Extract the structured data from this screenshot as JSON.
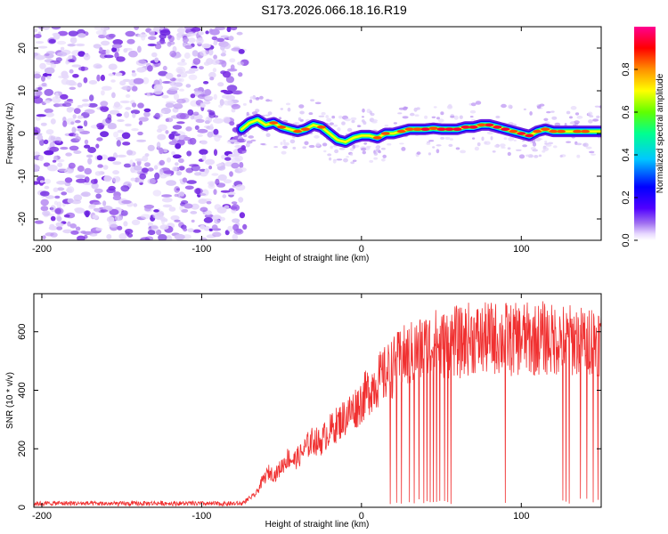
{
  "title": "S173.2026.066.18.16.R19",
  "chart_data": [
    {
      "type": "heatmap",
      "xlabel": "Height of straight line (km)",
      "ylabel": "Frequency (Hz)",
      "xlim": [
        -205,
        150
      ],
      "ylim": [
        -25,
        25
      ],
      "xticks": [
        -200,
        -100,
        0,
        100
      ],
      "yticks": [
        -20,
        -10,
        0,
        10,
        20
      ],
      "noise_region_x": [
        -205,
        -73
      ],
      "ridge": {
        "x": [
          -75,
          -70,
          -65,
          -60,
          -55,
          -50,
          -45,
          -40,
          -35,
          -30,
          -25,
          -20,
          -15,
          -10,
          -5,
          0,
          5,
          10,
          15,
          20,
          25,
          30,
          35,
          40,
          45,
          50,
          55,
          60,
          65,
          70,
          75,
          80,
          85,
          90,
          95,
          100,
          105,
          110,
          115,
          120,
          125,
          130,
          135,
          140,
          145,
          150
        ],
        "freq": [
          1.0,
          2.5,
          3.2,
          2.0,
          2.5,
          1.5,
          1.0,
          0.5,
          1.0,
          2.0,
          1.5,
          0.0,
          -1.5,
          -2.0,
          -1.0,
          -0.5,
          -0.5,
          -1.0,
          0.0,
          0.0,
          0.5,
          1.0,
          1.0,
          1.0,
          1.2,
          1.0,
          1.0,
          1.0,
          1.5,
          1.5,
          2.0,
          2.0,
          1.5,
          1.0,
          0.5,
          0.0,
          -0.5,
          0.5,
          1.0,
          0.5,
          0.5,
          0.5,
          0.5,
          0.5,
          0.5,
          0.5
        ],
        "amplitude": [
          0.65,
          0.8,
          0.75,
          0.8,
          0.9,
          0.85,
          0.8,
          0.9,
          0.85,
          0.8,
          0.9,
          0.8,
          0.7,
          0.75,
          0.8,
          0.75,
          0.8,
          0.85,
          0.9,
          0.8,
          0.85,
          0.9,
          0.9,
          0.95,
          0.9,
          0.95,
          1.0,
          0.95,
          0.95,
          1.0,
          0.9,
          0.95,
          1.0,
          0.95,
          0.9,
          1.0,
          0.95,
          0.9,
          0.85,
          0.9,
          0.85,
          0.8,
          0.9,
          0.85,
          0.8,
          0.8
        ]
      },
      "colorbar": {
        "label": "Normalized spectral amplitude",
        "range": [
          0.0,
          1.0
        ],
        "ticks": [
          "0.0",
          "0.2",
          "0.4",
          "0.6",
          "0.8"
        ],
        "tick_values": [
          0.0,
          0.2,
          0.4,
          0.6,
          0.8
        ]
      },
      "colors": {
        "noise": "#7b2fe0",
        "scale": [
          "#ffffff",
          "#e8d8ff",
          "#a070f0",
          "#4000ff",
          "#0000ff",
          "#00c8ff",
          "#00ff80",
          "#80ff00",
          "#ffff00",
          "#ff8000",
          "#ff0000",
          "#ff0080"
        ]
      }
    },
    {
      "type": "line",
      "xlabel": "Height of straight line (km)",
      "ylabel": "SNR (10 * v/v)",
      "xlim": [
        -205,
        150
      ],
      "ylim": [
        0,
        730
      ],
      "xticks": [
        -200,
        -100,
        0,
        100
      ],
      "yticks": [
        0,
        200,
        400,
        600
      ],
      "series": [
        {
          "color": "#f03030",
          "x": [
            -205,
            -190,
            -170,
            -150,
            -130,
            -110,
            -90,
            -75,
            -66,
            -62,
            -58,
            -54,
            -50,
            -46,
            -42,
            -38,
            -34,
            -30,
            -26,
            -22,
            -18,
            -14,
            -10,
            -6,
            -2,
            2,
            6,
            10,
            14,
            18,
            22,
            26,
            30,
            34,
            38,
            42,
            46,
            50,
            54,
            58,
            62,
            66,
            70,
            74,
            78,
            82,
            86,
            90,
            94,
            98,
            102,
            106,
            110,
            114,
            118,
            122,
            126,
            130,
            134,
            138,
            142,
            146,
            150
          ],
          "y": [
            12,
            14,
            13,
            12,
            14,
            13,
            12,
            13,
            45,
            90,
            120,
            110,
            140,
            170,
            160,
            180,
            210,
            230,
            220,
            250,
            270,
            290,
            310,
            330,
            350,
            380,
            410,
            430,
            450,
            470,
            490,
            510,
            520,
            530,
            540,
            550,
            560,
            550,
            560,
            570,
            560,
            575,
            580,
            570,
            575,
            580,
            575,
            580,
            570,
            575,
            580,
            570,
            575,
            580,
            570,
            575,
            580,
            570,
            575,
            570,
            580,
            575,
            570
          ]
        }
      ],
      "dropouts_x": [
        18,
        22,
        25,
        30,
        33,
        36,
        39,
        41,
        43,
        45,
        47,
        49,
        52,
        54,
        56,
        90,
        126,
        128,
        130,
        137,
        141,
        145,
        148
      ]
    }
  ]
}
